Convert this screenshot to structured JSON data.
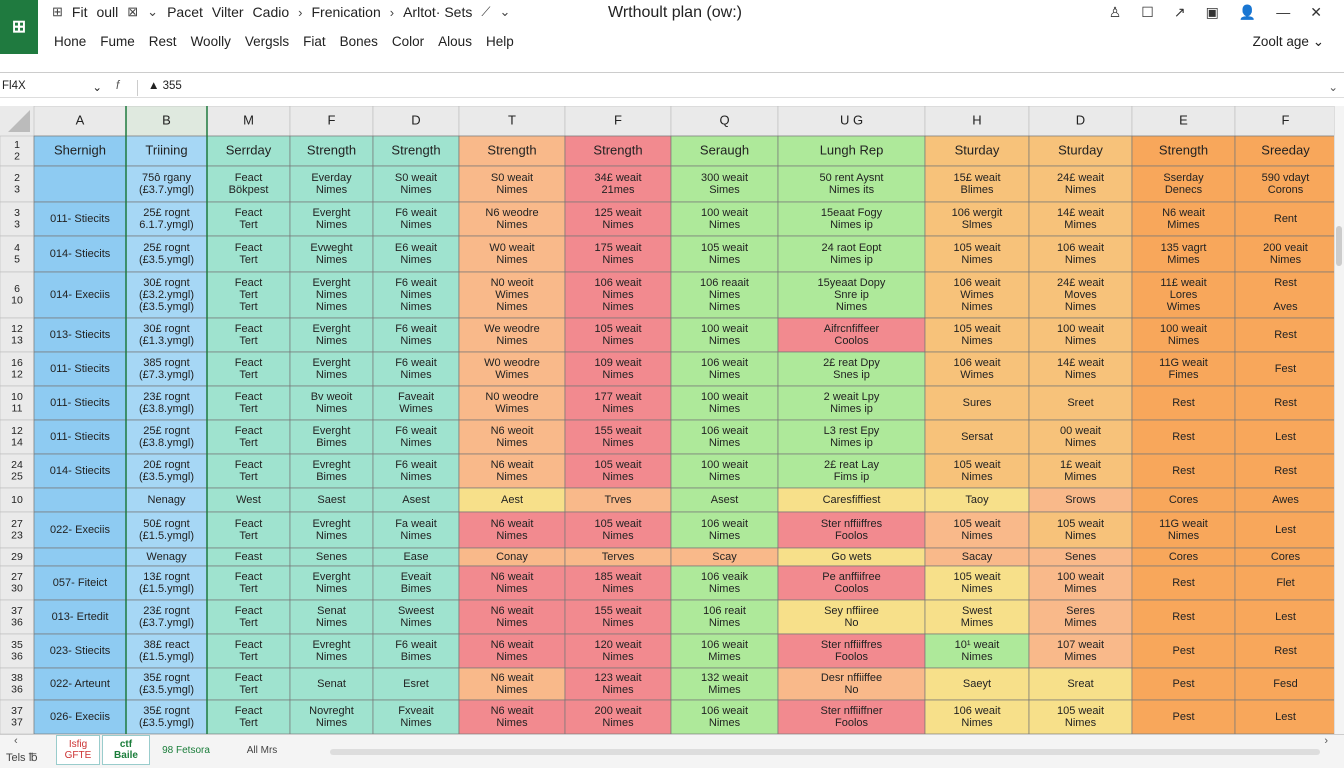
{
  "app": {
    "logo": "⊞"
  },
  "titlebar": {
    "title": "Wrthoult plan (ow:)",
    "left_items": [
      "⊞",
      "Fit",
      "oull",
      "⊠",
      "⌄",
      "Pacet",
      "Vilter",
      "Cadio",
      "›",
      "Frenication",
      "›",
      "Arltot· Sets",
      "⟋",
      "⌄"
    ],
    "right_icons": [
      "profile-icon",
      "restore-icon",
      "share-icon",
      "save-icon",
      "user-icon",
      "minimize-icon",
      "close-icon"
    ],
    "right_glyphs": [
      "♙",
      "☐",
      "↗",
      "▣",
      "👤",
      "—",
      "✕"
    ]
  },
  "menubar": {
    "items": [
      "Hone",
      "Fume",
      "Rest",
      "Woolly",
      "Vergsls",
      "Fiat",
      "Bones",
      "Color",
      "Alous",
      "Help"
    ],
    "zoom": "Zoolt age",
    "zoom_caret": "⌄"
  },
  "formula": {
    "name_box": "Fl4X",
    "name_caret": "⌄",
    "fx": "f",
    "value": "▲ 355",
    "more": "⌄"
  },
  "sheet": {
    "column_headers": [
      "A",
      "B",
      "M",
      "F",
      "D",
      "T",
      "F",
      "Q",
      "U G",
      "H",
      "D",
      "E",
      "F"
    ],
    "header_row": {
      "row_label": "1\n2",
      "cells": [
        "Shernigh",
        "Triining",
        "Serrday",
        "Strength",
        "Strength",
        "Strength",
        "Strength",
        "Seraugh",
        "Lungh   Rep",
        "Sturday",
        "Sturday",
        "Strength",
        "Sreeday"
      ]
    },
    "rows": [
      {
        "row_label": "2\n3",
        "cells": [
          "",
          "75ô rgany\n(£3.7.ymgl)",
          "Feact\nBökpest",
          "Everday\nNimes",
          "S0 weait\nNimes",
          "S0 weait\nNimes",
          "34£ weait\n21mes",
          "300 weait\nSimes",
          "50 rent   Aysnt\nNimes   its",
          "15£ weait\nBlimes",
          "24£ weait\nNimes",
          "Sserday\nDenecs",
          "590 vdayt\nCorons"
        ]
      },
      {
        "row_label": "3\n3",
        "cells": [
          "011- Stiecits",
          "25£ rognt\n6.1.7.ymgl)",
          "Feact\nTert",
          "Everght\nNimes",
          "F6 weait\nNimes",
          "N6 weodre\nNimes",
          "125 weait\nNimes",
          "100 weait\nNimes",
          "15eaat   Fogy\nNimes   ip",
          "106 wergit\nSlmes",
          "14£ weait\nMimes",
          "N6 weait\nMimes",
          "Rent"
        ]
      },
      {
        "row_label": "4\n5",
        "cells": [
          "014- Stiecits",
          "25£ rognt\n(£3.5.ymgl)",
          "Feact\nTert",
          "Evweght\nNimes",
          "E6 weait\nNimes",
          "W0 weait\nNimes",
          "175 weait\nNimes",
          "105 weait\nNimes",
          "24 raot   Eopt\nNimes   ip",
          "105 weait\nNimes",
          "106 weait\nNimes",
          "135 vagrt\nMimes",
          "200 veait\nNimes"
        ]
      },
      {
        "row_label": "6\n10",
        "cells": [
          "014- Execiis",
          "30£ rognt\n(£3.2.ymgl)\n(£3.5.ymgl)",
          "Feact\nTert\nTert",
          "Everght\nNimes\nNimes",
          "F6 weait\nNimes\nNimes",
          "N0 weoit\nWimes\nNimes",
          "106 weait\nNimes\nNimes",
          "106 reaait\nNimes\nNimes",
          "15yeaat   Dopy\nSnre   ip\nNimes",
          "106 weait\nWimes\nNimes",
          "24£ weait\nMoves\nNimes",
          "11£ weait\nLores\nWimes",
          "Rest\n\nAves"
        ]
      },
      {
        "row_label": "12\n13",
        "cells": [
          "013- Stiecits",
          "30£ rognt\n(£1.3.ymgl)",
          "Feact\nTert",
          "Everght\nNimes",
          "F6 weait\nNimes",
          "We weodre\nNimes",
          "105 weait\nNimes",
          "100 weait\nNimes",
          "Aifrcnfiffeer\nCoolos",
          "105 weait\nNimes",
          "100 weait\nNimes",
          "100 weait\nNimes",
          "Rest"
        ]
      },
      {
        "row_label": "16\n12",
        "cells": [
          "011- Stiecits",
          "385 rognt\n(£7.3.ymgl)",
          "Feact\nTert",
          "Everght\nNimes",
          "F6 weait\nNimes",
          "W0 weodre\nWimes",
          "109 weait\nNimes",
          "106 weait\nNimes",
          "2£ reat   Dpy\nSnes   ip",
          "106 weait\nWimes",
          "14£ weait\nNimes",
          "11G weait\nFimes",
          "Fest"
        ]
      },
      {
        "row_label": "10\n11",
        "cells": [
          "011- Stiecits",
          "23£ rognt\n(£3.8.ymgl)",
          "Feact\nTert",
          "Bv weoit\nNimes",
          "Faveait\nWimes",
          "N0 weodre\nWimes",
          "177 weait\nNimes",
          "100 weait\nNimes",
          "2 weait   Lpy\nNimes   ip",
          "Sures",
          "Sreet",
          "Rest",
          "Rest"
        ]
      },
      {
        "row_label": "12\n14",
        "cells": [
          "011- Stiecits",
          "25£ rognt\n(£3.8.ymgl)",
          "Feact\nTert",
          "Everght\nBimes",
          "F6 weait\nNimes",
          "N6 weoit\nNimes",
          "155 weait\nNimes",
          "106 weait\nNimes",
          "L3 rest   Epy\nNimes   ip",
          "Sersat",
          "00 weait\nNimes",
          "Rest",
          "Lest"
        ]
      },
      {
        "row_label": "24\n25",
        "cells": [
          "014- Stiecits",
          "20£ rognt\n(£3.5.ymgl)",
          "Feact\nTert",
          "Evreght\nBimes",
          "F6 weait\nNimes",
          "N6 weait\nNimes",
          "105 weait\nNimes",
          "100 weait\nNimes",
          "2£ reat   Lay\nFims   ip",
          "105 weait\nNimes",
          "1£ weait\nMimes",
          "Rest",
          "Rest"
        ]
      },
      {
        "row_label": "10",
        "cells": [
          "",
          "Nenagy",
          "West",
          "Saest",
          "Asest",
          "Aest",
          "Trves",
          "Asest",
          "Caresfiffiest",
          "Taoy",
          "Srows",
          "Cores",
          "Awes"
        ]
      },
      {
        "row_label": "27\n23",
        "cells": [
          "022- Execiis",
          "50£ rognt\n(£1.5.ymgl)",
          "Feact\nTert",
          "Evreght\nNimes",
          "Fa weait\nNimes",
          "N6 weait\nNimes",
          "105 weait\nNimes",
          "106 weait\nNimes",
          "Ster nffiiffres\nFoolos",
          "105 weait\nNimes",
          "105 weait\nNimes",
          "11G weait\nNimes",
          "Lest"
        ]
      },
      {
        "row_label": "29",
        "cells": [
          "",
          "Wenagy",
          "Feast",
          "Senes",
          "Ease",
          "Conay",
          "Terves",
          "Scay",
          "Go wets",
          "Sacay",
          "Senes",
          "Cores",
          "Cores"
        ]
      },
      {
        "row_label": "27\n30",
        "cells": [
          "057- Fiteict",
          "13£ rognt\n(£1.5.ymgl)",
          "Feact\nTert",
          "Everght\nNimes",
          "Eveait\nBimes",
          "N6 weait\nNimes",
          "185 weait\nNimes",
          "106 veaik\nNimes",
          "Pe anffiifree\nCoolos",
          "105 weait\nNimes",
          "100 weait\nMimes",
          "Rest",
          "Flet"
        ]
      },
      {
        "row_label": "37\n36",
        "cells": [
          "013- Ertedit",
          "23£ rognt\n(£3.7.ymgl)",
          "Feact\nTert",
          "Senat\nNimes",
          "Sweest\nNimes",
          "N6 weait\nNimes",
          "155 weait\nNimes",
          "106 reait\nNimes",
          "Sey nffiiree\nNo",
          "Swest\nMimes",
          "Seres\nMimes",
          "Rest",
          "Lest"
        ]
      },
      {
        "row_label": "35\n36",
        "cells": [
          "023- Stiecits",
          "38£ react\n(£1.5.ymgl)",
          "Feact\nTert",
          "Evreght\nNimes",
          "F6 weait\nBimes",
          "N6 weait\nNimes",
          "120 weait\nNimes",
          "106 weait\nMimes",
          "Ster nffiiffres\nFoolos",
          "10¹ weait\nNimes",
          "107 weait\nMimes",
          "Pest",
          "Rest"
        ]
      },
      {
        "row_label": "38\n36",
        "cells": [
          "022- Arteunt",
          "35£ rognt\n(£3.5.ymgl)",
          "Feact\nTert",
          "Senat",
          "Esret",
          "N6 weait\nNimes",
          "123 weait\nNimes",
          "132 weait\nMimes",
          "Desr nffiiffee\nNo",
          "Saeyt",
          "Sreat",
          "Pest",
          "Fesd"
        ]
      },
      {
        "row_label": "37\n37",
        "cells": [
          "026- Execiis",
          "35£ rognt\n(£3.5.ymgl)",
          "Feact\nTert",
          "Novreght\nNimes",
          "Fxveait\nNimes",
          "N6 weait\nNimes",
          "200 weait\nNimes",
          "106 weait\nNimes",
          "Ster nffiiffner\nFoolos",
          "106 weait\nNimes",
          "105 weait\nNimes",
          "Pest",
          "Lest"
        ]
      }
    ]
  },
  "colors": {
    "blue": "#8ecbf2",
    "lightblue": "#a6d7f5",
    "teal": "#9fe3cf",
    "orange": "#f9b98a",
    "red": "#f28a8f",
    "green": "#aee99a",
    "yellow": "#f7e08a",
    "gold": "#f7c27a",
    "orange2": "#f8a75b",
    "header_bg": "#eaeaea",
    "grid": "#777"
  },
  "tabs": {
    "status": "Tels ℔",
    "scroll_left": "‹",
    "scroll_right": "›",
    "items": [
      {
        "l1": "Isfig",
        "l2": "GFTE"
      },
      {
        "l1": "ctf",
        "l2": "Baile"
      },
      {
        "l1": "98 Fetsora",
        "l2": ""
      },
      {
        "l1": "All Mrs",
        "l2": ""
      }
    ]
  }
}
